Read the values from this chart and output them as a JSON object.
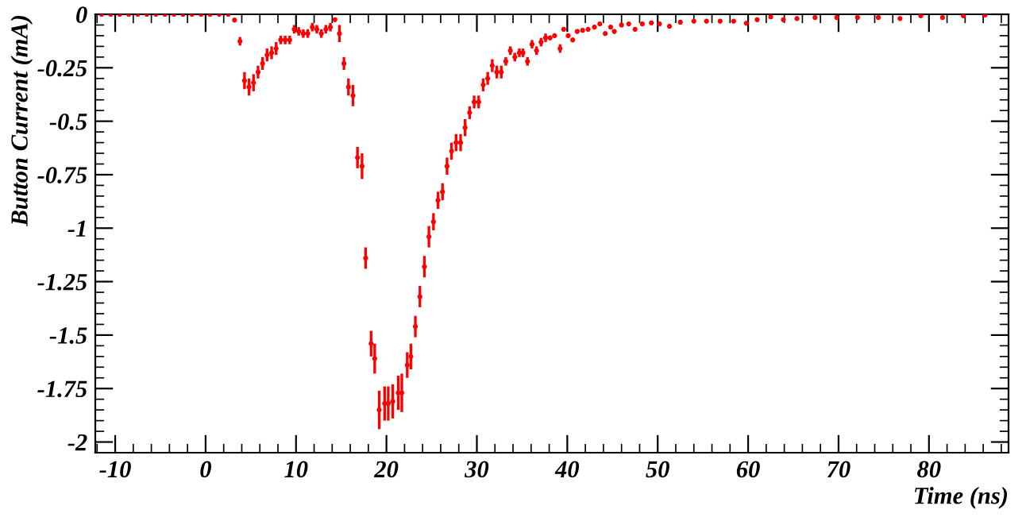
{
  "chart_data": {
    "type": "scatter",
    "xlabel": "Time (ns)",
    "ylabel": "Button Current (mA)",
    "series": [
      {
        "color": "#ff0000",
        "x": [
          -11.5,
          -10.5,
          -9.5,
          -8.5,
          -7.5,
          -6.5,
          -5.5,
          -4.5,
          -3.5,
          -2.5,
          -1.5,
          -0.5,
          0.5,
          1.5,
          2.5,
          3.2,
          3.8,
          4.3,
          4.8,
          5.3,
          5.8,
          6.3,
          6.8,
          7.3,
          7.8,
          8.3,
          8.8,
          9.3,
          9.8,
          10.3,
          10.8,
          11.3,
          11.8,
          12.3,
          12.8,
          13.3,
          13.8,
          14.3,
          14.8,
          15.3,
          15.8,
          16.3,
          16.8,
          17.3,
          17.7,
          18.3,
          18.7,
          19.2,
          19.8,
          20.2,
          20.7,
          21.3,
          21.7,
          22.3,
          22.7,
          23.2,
          23.7,
          24.2,
          24.7,
          25.2,
          25.7,
          26.2,
          26.7,
          27.2,
          27.7,
          28.2,
          28.7,
          29.2,
          29.7,
          30.2,
          30.7,
          31.2,
          31.7,
          32.2,
          32.7,
          33.2,
          33.7,
          34.2,
          34.7,
          35.1,
          35.6,
          36.1,
          36.6,
          37.1,
          37.6,
          38.1,
          38.6,
          39.2,
          39.6,
          40.1,
          40.6,
          41.1,
          41.7,
          42.3,
          43.0,
          43.6,
          44.2,
          44.8,
          45.2,
          46.0,
          46.8,
          47.5,
          48.3,
          49.3,
          50.2,
          51.3,
          52.5,
          54.0,
          55.4,
          56.9,
          58.4,
          59.8,
          61.0,
          62.5,
          63.9,
          65.4,
          67.4,
          69.8,
          72.1,
          74.4,
          76.8,
          79.1,
          81.5,
          83.8,
          86.2
        ],
        "values": [
          0,
          0,
          0,
          0,
          0,
          0,
          0,
          0,
          0,
          0,
          0,
          0,
          0,
          0,
          0,
          -0.027,
          -0.126,
          -0.31,
          -0.34,
          -0.32,
          -0.27,
          -0.23,
          -0.19,
          -0.18,
          -0.16,
          -0.12,
          -0.12,
          -0.12,
          -0.07,
          -0.08,
          -0.09,
          -0.09,
          -0.06,
          -0.07,
          -0.09,
          -0.07,
          -0.06,
          -0.025,
          -0.09,
          -0.23,
          -0.34,
          -0.38,
          -0.67,
          -0.71,
          -1.14,
          -1.54,
          -1.61,
          -1.85,
          -1.82,
          -1.82,
          -1.81,
          -1.77,
          -1.77,
          -1.64,
          -1.6,
          -1.46,
          -1.32,
          -1.18,
          -1.04,
          -0.97,
          -0.87,
          -0.83,
          -0.71,
          -0.64,
          -0.6,
          -0.6,
          -0.53,
          -0.46,
          -0.41,
          -0.41,
          -0.33,
          -0.3,
          -0.24,
          -0.27,
          -0.27,
          -0.22,
          -0.17,
          -0.2,
          -0.18,
          -0.18,
          -0.22,
          -0.14,
          -0.17,
          -0.13,
          -0.11,
          -0.11,
          -0.1,
          -0.16,
          -0.07,
          -0.1,
          -0.12,
          -0.08,
          -0.075,
          -0.07,
          -0.06,
          -0.045,
          -0.09,
          -0.06,
          -0.08,
          -0.05,
          -0.045,
          -0.07,
          -0.045,
          -0.04,
          -0.045,
          -0.056,
          -0.037,
          -0.032,
          -0.032,
          -0.032,
          -0.032,
          -0.042,
          -0.025,
          -0.012,
          -0.025,
          -0.02,
          -0.015,
          -0.015,
          -0.015,
          -0.015,
          -0.02,
          -0.007,
          -0.015,
          -0.007,
          -0.003
        ],
        "errors": [
          0.005,
          0.005,
          0.005,
          0.005,
          0.005,
          0.005,
          0.005,
          0.005,
          0.005,
          0.005,
          0.005,
          0.005,
          0.005,
          0.005,
          0.005,
          0.01,
          0.02,
          0.04,
          0.04,
          0.04,
          0.03,
          0.03,
          0.03,
          0.03,
          0.03,
          0.02,
          0.02,
          0.02,
          0.02,
          0.02,
          0.02,
          0.02,
          0.02,
          0.02,
          0.02,
          0.02,
          0.02,
          0.01,
          0.04,
          0.03,
          0.04,
          0.05,
          0.05,
          0.06,
          0.05,
          0.06,
          0.07,
          0.09,
          0.08,
          0.08,
          0.08,
          0.08,
          0.09,
          0.06,
          0.06,
          0.05,
          0.05,
          0.05,
          0.05,
          0.04,
          0.04,
          0.04,
          0.04,
          0.04,
          0.04,
          0.04,
          0.04,
          0.03,
          0.03,
          0.03,
          0.03,
          0.03,
          0.03,
          0.03,
          0.03,
          0.02,
          0.02,
          0.02,
          0.02,
          0.02,
          0.02,
          0.02,
          0.02,
          0.02,
          0.02,
          0.01,
          0.01,
          0.02,
          0.01,
          0.01,
          0.01,
          0.01,
          0.01,
          0.01,
          0.01,
          0.01,
          0.01,
          0.01,
          0.01,
          0.01,
          0.01,
          0.01,
          0.01,
          0.01,
          0.01,
          0.01,
          0.01,
          0.01,
          0.01,
          0.01,
          0.01,
          0.01,
          0.01,
          0.01,
          0.01,
          0.01,
          0.01,
          0.01,
          0.01,
          0.01,
          0.01,
          0.01,
          0.01,
          0.01,
          0.01
        ]
      }
    ],
    "xlim": [
      -12.2,
      88.8
    ],
    "xticks": [
      -10,
      0,
      10,
      20,
      30,
      40,
      50,
      60,
      70,
      80
    ],
    "ylim": [
      -2.05,
      0
    ],
    "yticks": [
      0,
      -0.25,
      -0.5,
      -0.75,
      -1,
      -1.25,
      -1.5,
      -1.75,
      -2
    ],
    "grid": false,
    "marker": "circle"
  }
}
